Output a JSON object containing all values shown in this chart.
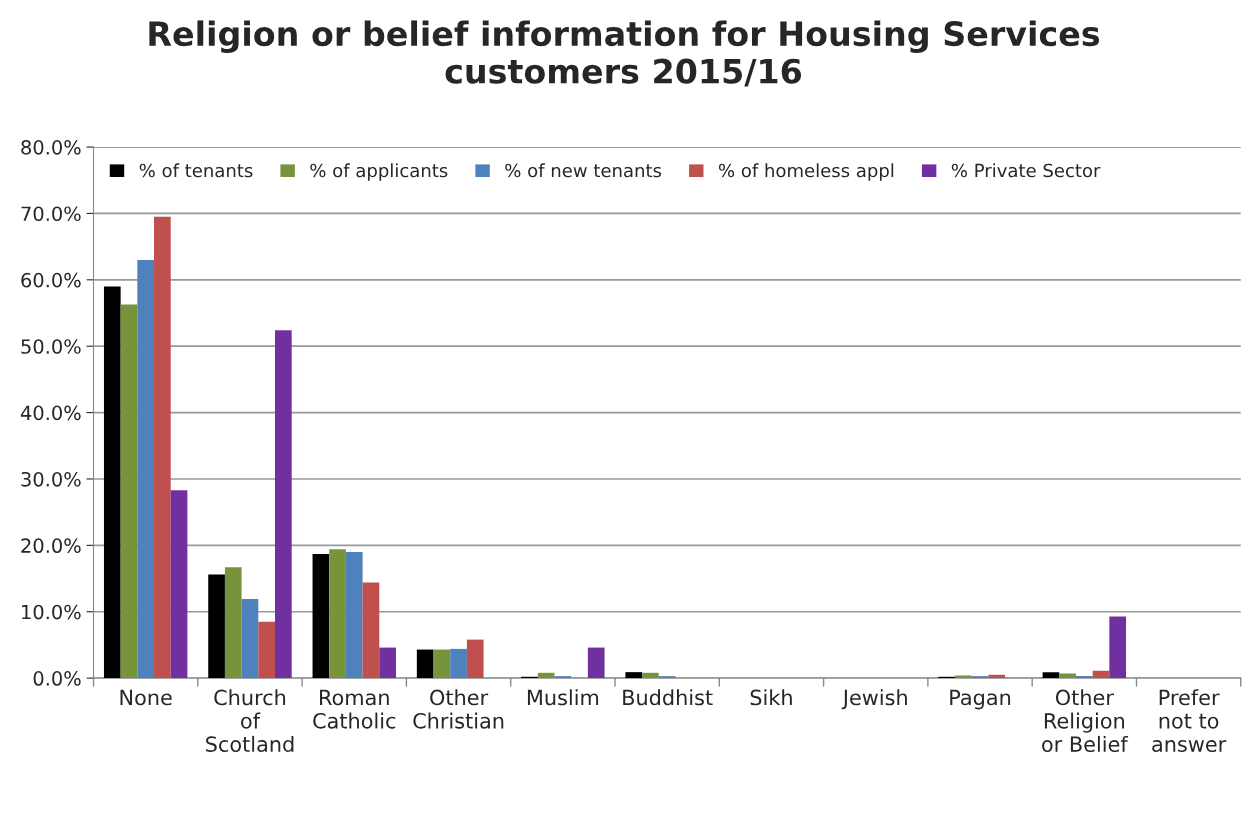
{
  "chart_data": {
    "type": "bar",
    "title": "Religion or belief information for Housing Services\ncustomers 2015/16",
    "categories": [
      "None",
      "Church\nof\nScotland",
      "Roman\nCatholic",
      "Other\nChristian",
      "Muslim",
      "Buddhist",
      "Sikh",
      "Jewish",
      "Pagan",
      "Other\nReligion\nor Belief",
      "Prefer\nnot to\nanswer"
    ],
    "series": [
      {
        "name": "% of tenants",
        "color": "#000000",
        "values": [
          59.0,
          15.6,
          18.7,
          4.3,
          0.2,
          0.9,
          null,
          null,
          0.2,
          0.9,
          null
        ]
      },
      {
        "name": "% of applicants",
        "color": "#77933c",
        "values": [
          56.3,
          16.7,
          19.4,
          4.3,
          0.8,
          0.8,
          null,
          null,
          0.4,
          0.7,
          null
        ]
      },
      {
        "name": "% of new tenants",
        "color": "#4f81bd",
        "values": [
          63.0,
          11.9,
          19.0,
          4.4,
          0.3,
          0.3,
          null,
          null,
          0.3,
          0.3,
          null
        ]
      },
      {
        "name": "% of homeless appl",
        "color": "#c0504d",
        "values": [
          69.5,
          8.5,
          14.4,
          5.8,
          null,
          null,
          null,
          null,
          0.5,
          1.1,
          null
        ]
      },
      {
        "name": "% Private Sector",
        "color": "#7030a0",
        "values": [
          28.3,
          52.4,
          4.6,
          null,
          4.6,
          null,
          null,
          null,
          null,
          9.3,
          null
        ]
      }
    ],
    "ylim": [
      0,
      80
    ],
    "yticks": [
      {
        "value": 0,
        "label": "0.0%"
      },
      {
        "value": 10,
        "label": "10.0%"
      },
      {
        "value": 20,
        "label": "20.0%"
      },
      {
        "value": 30,
        "label": "30.0%"
      },
      {
        "value": 40,
        "label": "40.0%"
      },
      {
        "value": 50,
        "label": "50.0%"
      },
      {
        "value": 60,
        "label": "60.0%"
      },
      {
        "value": 70,
        "label": "70.0%"
      },
      {
        "value": 80,
        "label": "80.0%"
      }
    ],
    "grid": "y",
    "legend": "top"
  }
}
